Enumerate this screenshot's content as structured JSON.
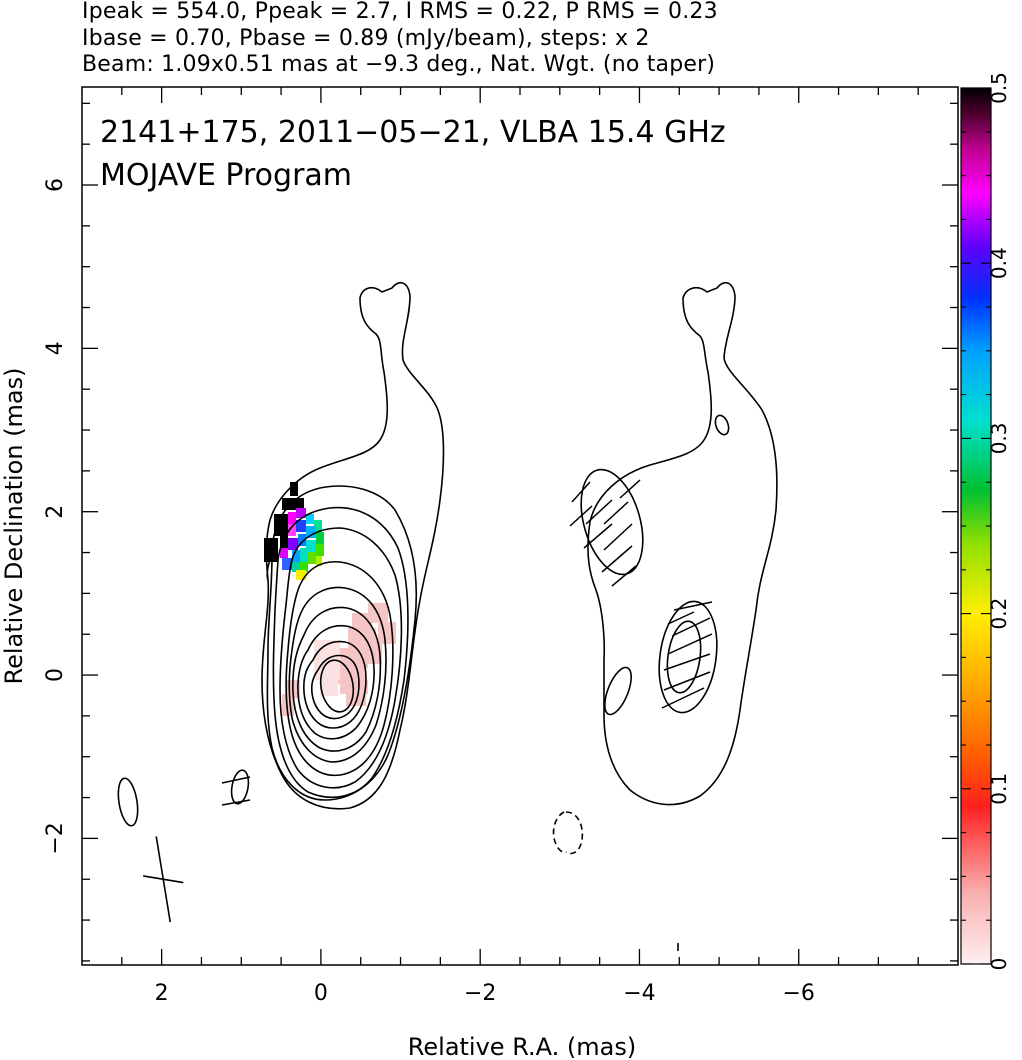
{
  "header": {
    "line1": "Ipeak = 554.0, Ppeak = 2.7, I RMS = 0.22, P RMS = 0.23",
    "line2": "Ibase = 0.70, Pbase = 0.89 (mJy/beam), steps: x 2",
    "line3": "Beam: 1.09x0.51 mas at −9.3 deg., Nat. Wgt. (no taper)"
  },
  "chart_data": {
    "type": "heatmap",
    "title": "",
    "annotations": [
      "2141+175, 2011−05−21, VLBA 15.4 GHz",
      "MOJAVE Program"
    ],
    "xlabel": "Relative R.A. (mas)",
    "ylabel": "Relative Declination (mas)",
    "xlim": [
      3.0,
      -8.0
    ],
    "ylim": [
      -3.55,
      7.2
    ],
    "x_ticks": [
      2,
      0,
      -2,
      -4,
      -6
    ],
    "x_tick_labels": [
      "2",
      "0",
      "−2",
      "−4",
      "−6"
    ],
    "y_ticks": [
      -2,
      0,
      2,
      4,
      6
    ],
    "y_tick_labels": [
      "−2",
      "0",
      "2",
      "4",
      "6"
    ],
    "colorbar": {
      "range": [
        0,
        0.5
      ],
      "ticks": [
        0,
        0.1,
        0.2,
        0.3,
        0.4,
        0.5
      ],
      "tick_labels": [
        "0",
        "0.1",
        "0.2",
        "0.3",
        "0.4",
        "0.5"
      ],
      "colors": [
        "#fdecec",
        "#f8a0a0",
        "#ff1a1a",
        "#ff8a00",
        "#ffee00",
        "#7fe000",
        "#00c030",
        "#00e0d8",
        "#0050ff",
        "#6000ff",
        "#ff00ff",
        "#c0008f",
        "#4a0030",
        "#000000"
      ]
    },
    "stokes_I_peak_position": [
      0,
      0
    ],
    "contour_levels_mJy_per_beam": [
      0.7,
      1.4,
      2.8,
      5.6,
      11.2,
      22.4,
      44.8,
      89.6,
      179.2,
      358.4
    ],
    "beam": {
      "major_mas": 1.09,
      "minor_mas": 0.51,
      "pa_deg": -9.3,
      "center": [
        1.98,
        -2.5
      ]
    }
  }
}
